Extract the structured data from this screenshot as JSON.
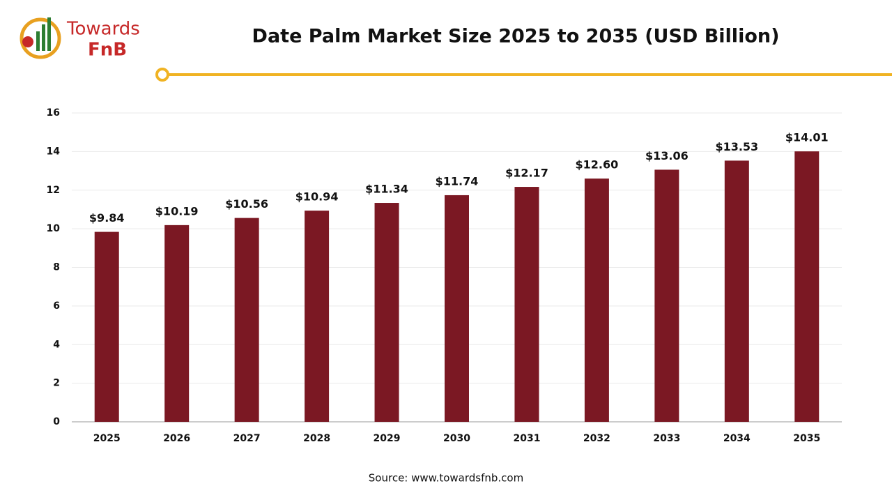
{
  "logo": {
    "line1": "Towards",
    "line2": "FnB"
  },
  "chart_data": {
    "type": "bar",
    "title": "Date Palm Market Size 2025 to 2035 (USD Billion)",
    "categories": [
      "2025",
      "2026",
      "2027",
      "2028",
      "2029",
      "2030",
      "2031",
      "2032",
      "2033",
      "2034",
      "2035"
    ],
    "values": [
      9.84,
      10.19,
      10.56,
      10.94,
      11.34,
      11.74,
      12.17,
      12.6,
      13.06,
      13.53,
      14.01
    ],
    "value_labels": [
      "$9.84",
      "$10.19",
      "$10.56",
      "$10.94",
      "$11.34",
      "$11.74",
      "$12.17",
      "$12.60",
      "$13.06",
      "$13.53",
      "$14.01"
    ],
    "color": "#7b1823",
    "ylim": [
      0,
      16
    ],
    "yticks": [
      0,
      2,
      4,
      6,
      8,
      10,
      12,
      14,
      16
    ],
    "grid": true,
    "source": "Source: www.towardsfnb.com"
  }
}
